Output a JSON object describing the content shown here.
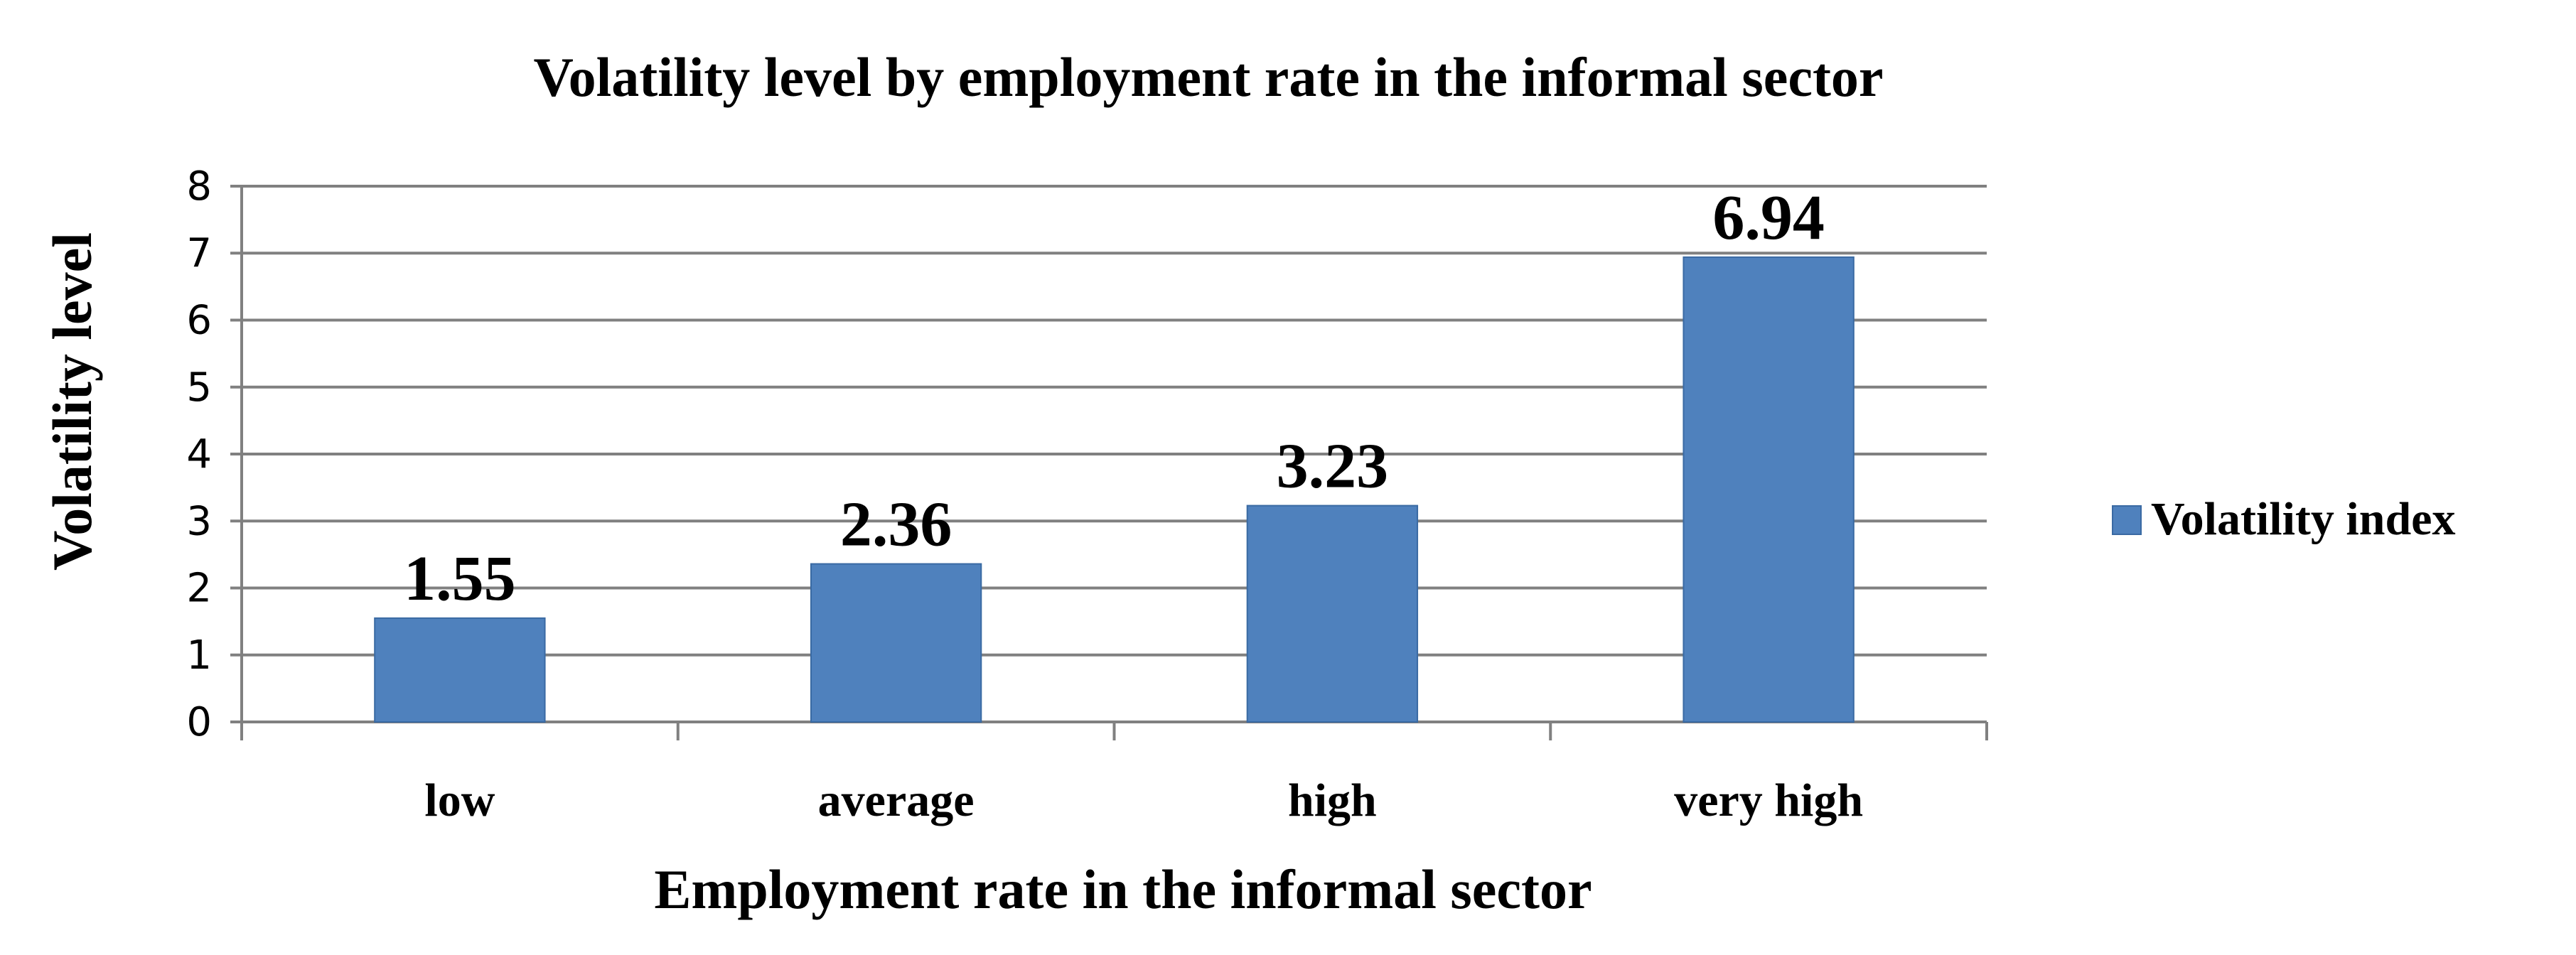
{
  "chart_data": {
    "type": "bar",
    "title": "Volatility level by employment rate in the informal sector",
    "xlabel": "Employment rate in the informal sector",
    "ylabel": "Volatility level",
    "categories": [
      "low",
      "average",
      "high",
      "very high"
    ],
    "series": [
      {
        "name": "Volatility index",
        "values": [
          1.55,
          2.36,
          3.23,
          6.94
        ],
        "data_labels": [
          "1.55",
          "2.36",
          "3.23",
          "6.94"
        ]
      }
    ],
    "ylim": [
      0,
      8
    ],
    "yticks": [
      0,
      1,
      2,
      3,
      4,
      5,
      6,
      7,
      8
    ],
    "ytick_labels": [
      "0",
      "1",
      "2",
      "3",
      "4",
      "5",
      "6",
      "7",
      "8"
    ],
    "grid": true,
    "legend_position": "right",
    "colors": {
      "bar": "#4f81bd",
      "bar_edge": "#3a6aa3",
      "grid": "#808080",
      "text": "#000000"
    }
  }
}
